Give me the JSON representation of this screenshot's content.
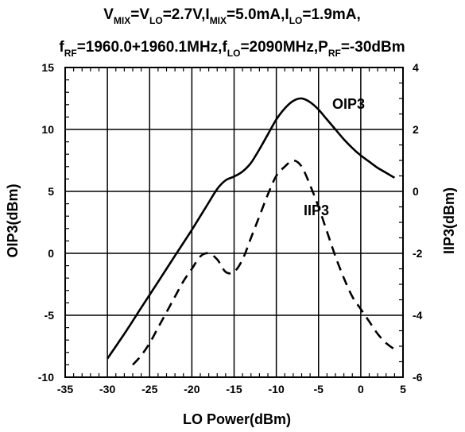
{
  "chart_data": {
    "type": "line",
    "title": {
      "line1": [
        {
          "t": "V"
        },
        {
          "t": "MIX",
          "sub": true
        },
        {
          "t": "=V"
        },
        {
          "t": "LO",
          "sub": true
        },
        {
          "t": "=2.7V,I"
        },
        {
          "t": "MIX",
          "sub": true
        },
        {
          "t": "=5.0mA,I"
        },
        {
          "t": "LO",
          "sub": true
        },
        {
          "t": "=1.9mA,"
        }
      ],
      "line2": [
        {
          "t": "f"
        },
        {
          "t": "RF",
          "sub": true
        },
        {
          "t": "=1960.0+1960.1MHz,f"
        },
        {
          "t": "LO",
          "sub": true
        },
        {
          "t": "=2090MHz,P"
        },
        {
          "t": "RF",
          "sub": true
        },
        {
          "t": "=-30dBm"
        }
      ]
    },
    "xlabel": "LO Power(dBm)",
    "ylabel_left": "OIP3(dBm)",
    "ylabel_right": "IIP3(dBm)",
    "xlim": [
      -35,
      5
    ],
    "ylim_left": [
      -10,
      15
    ],
    "ylim_right": [
      -6,
      4
    ],
    "xticks": [
      -35,
      -30,
      -25,
      -20,
      -15,
      -10,
      -5,
      0,
      5
    ],
    "yticks_left": [
      -10,
      -5,
      0,
      5,
      10,
      15
    ],
    "yticks_right": [
      -6,
      -4,
      -2,
      0,
      2,
      4
    ],
    "grid": true,
    "series": [
      {
        "name": "OIP3",
        "axis": "left",
        "style": "solid",
        "x": [
          -30,
          -28,
          -26,
          -24,
          -22,
          -20,
          -19,
          -18,
          -17,
          -16,
          -15,
          -14,
          -13,
          -12,
          -11,
          -10,
          -9,
          -8,
          -7,
          -6,
          -5,
          -4,
          -3,
          -2,
          -1,
          0,
          1,
          2,
          3,
          4
        ],
        "y": [
          -8.5,
          -6.5,
          -4.4,
          -2.3,
          -0.2,
          1.9,
          3.0,
          4.1,
          5.2,
          5.9,
          6.2,
          6.6,
          7.3,
          8.4,
          9.6,
          10.8,
          11.7,
          12.3,
          12.5,
          12.2,
          11.6,
          10.8,
          10.0,
          9.2,
          8.5,
          7.9,
          7.4,
          6.9,
          6.5,
          6.1
        ]
      },
      {
        "name": "IIP3",
        "axis": "right",
        "style": "dashed",
        "x": [
          -27,
          -26,
          -25,
          -24,
          -23,
          -22,
          -21,
          -20,
          -19,
          -18,
          -17,
          -16,
          -15,
          -14,
          -13,
          -12,
          -11,
          -10,
          -9,
          -8,
          -7,
          -6,
          -5,
          -4,
          -3,
          -2,
          -1,
          0,
          1,
          2,
          3,
          4
        ],
        "y": [
          -5.6,
          -5.3,
          -4.9,
          -4.4,
          -3.9,
          -3.4,
          -2.9,
          -2.5,
          -2.1,
          -2.0,
          -2.2,
          -2.6,
          -2.6,
          -2.2,
          -1.5,
          -0.8,
          -0.1,
          0.5,
          0.8,
          1.0,
          0.8,
          0.2,
          -0.5,
          -1.3,
          -2.1,
          -2.8,
          -3.4,
          -3.8,
          -4.2,
          -4.6,
          -4.9,
          -5.1
        ]
      }
    ]
  }
}
